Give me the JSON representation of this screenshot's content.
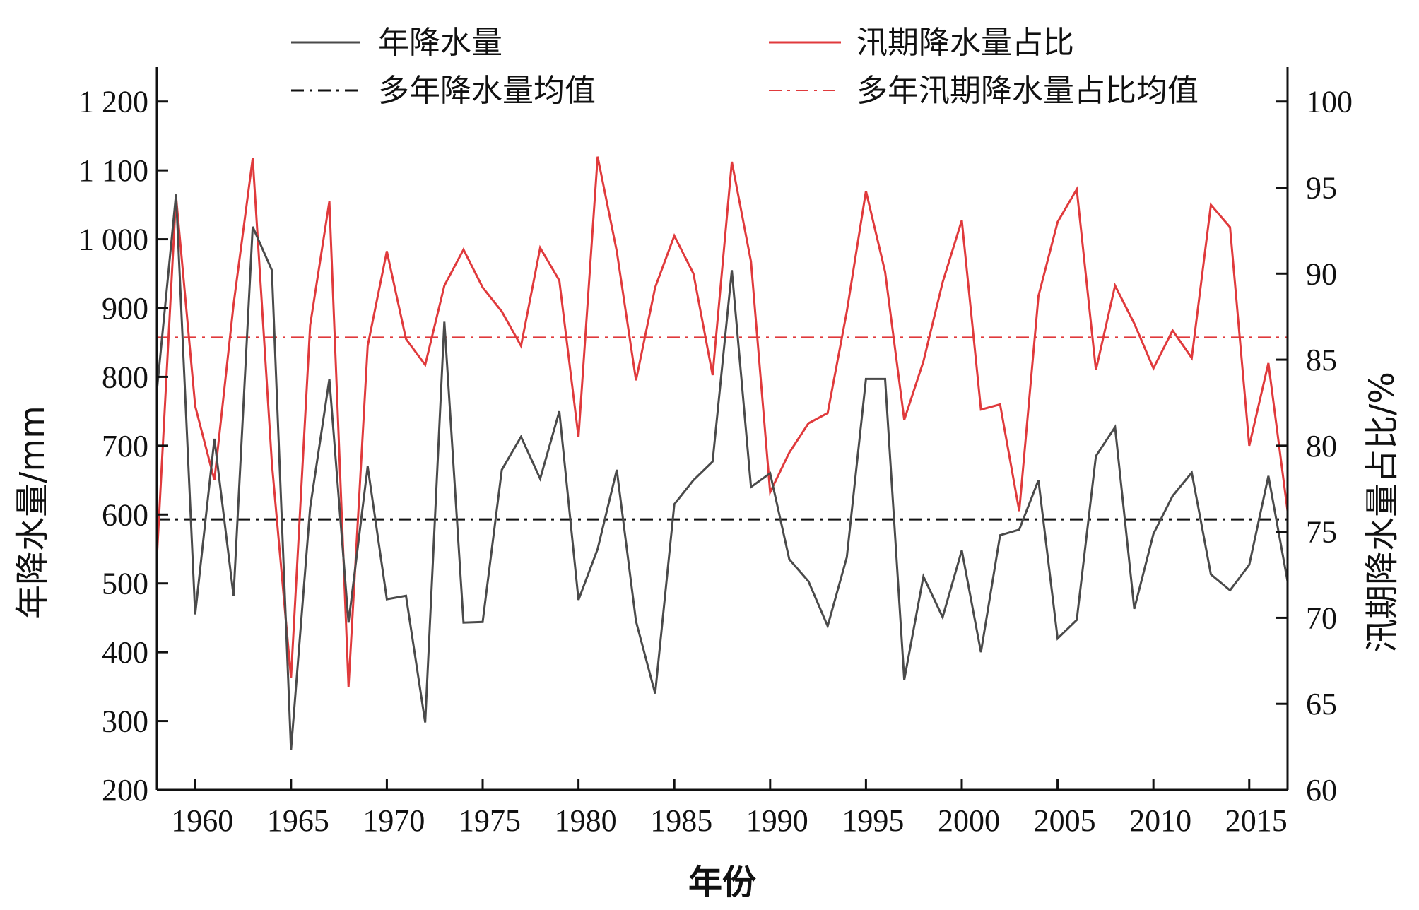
{
  "chart_data": {
    "type": "line",
    "xlabel": "年份",
    "ylabel_left": "年降水量/mm",
    "ylabel_right": "汛期降水量占比/%",
    "xlim": [
      1958,
      2017
    ],
    "ylim_left": [
      200,
      1250
    ],
    "ylim_right": [
      60,
      102
    ],
    "x_ticks": [
      1960,
      1965,
      1970,
      1975,
      1980,
      1985,
      1990,
      1995,
      2000,
      2005,
      2010,
      2015
    ],
    "y_left_ticks": [
      200,
      300,
      400,
      500,
      600,
      700,
      800,
      900,
      1000,
      1100,
      1200
    ],
    "y_left_tick_labels": [
      "200",
      "300",
      "400",
      "500",
      "600",
      "700",
      "800",
      "900",
      "1 000",
      "1 100",
      "1 200"
    ],
    "y_right_ticks": [
      60,
      65,
      70,
      75,
      80,
      85,
      90,
      95,
      100
    ],
    "y_right_tick_labels": [
      "60",
      "65",
      "70",
      "75",
      "80",
      "85",
      "90",
      "95",
      "100"
    ],
    "years": [
      1958,
      1959,
      1960,
      1961,
      1962,
      1963,
      1964,
      1965,
      1966,
      1967,
      1968,
      1969,
      1970,
      1971,
      1972,
      1973,
      1974,
      1975,
      1976,
      1977,
      1978,
      1979,
      1980,
      1981,
      1982,
      1983,
      1984,
      1985,
      1986,
      1987,
      1988,
      1989,
      1990,
      1991,
      1992,
      1993,
      1994,
      1995,
      1996,
      1997,
      1998,
      1999,
      2000,
      2001,
      2002,
      2003,
      2004,
      2005,
      2006,
      2007,
      2008,
      2009,
      2010,
      2011,
      2012,
      2013,
      2014,
      2015,
      2016,
      2017
    ],
    "series": [
      {
        "name": "年降水量",
        "axis": "left",
        "color": "#4a4a4a",
        "values": [
          780,
          1065,
          455,
          710,
          482,
          1018,
          955,
          258,
          610,
          797,
          443,
          670,
          477,
          482,
          298,
          880,
          443,
          444,
          665,
          713,
          652,
          750,
          476,
          550,
          665,
          445,
          340,
          615,
          650,
          677,
          955,
          640,
          660,
          535,
          503,
          438,
          538,
          797,
          797,
          360,
          510,
          451,
          548,
          400,
          570,
          578,
          650,
          420,
          447,
          685,
          727,
          463,
          572,
          627,
          661,
          513,
          490,
          527,
          656,
          503
        ]
      },
      {
        "name": "汛期降水量占比",
        "axis": "right",
        "color": "#e03a3c",
        "values": [
          73.5,
          94.5,
          82.3,
          78,
          88.2,
          96.7,
          79,
          66.5,
          87,
          94.2,
          66,
          85.8,
          91.3,
          86.2,
          84.7,
          89.3,
          91.4,
          89.2,
          87.8,
          85.8,
          91.5,
          89.6,
          80.5,
          96.8,
          91.3,
          83.8,
          89.2,
          92.2,
          90,
          84.1,
          96.5,
          90.7,
          77.3,
          79.6,
          81.3,
          81.9,
          87.8,
          94.8,
          90.1,
          81.5,
          84.9,
          89.5,
          93.1,
          82.1,
          82.4,
          76.2,
          88.7,
          93,
          94.9,
          84.4,
          89.3,
          87.1,
          84.5,
          86.7,
          85.1,
          94,
          92.7,
          80,
          84.8,
          76.2
        ]
      }
    ],
    "reference_lines": [
      {
        "name": "多年降水量均值",
        "axis": "left",
        "value": 593,
        "color": "#111111",
        "style": "dash-dot"
      },
      {
        "name": "多年汛期降水量占比均值",
        "axis": "right",
        "value": 86.3,
        "color": "#e03a3c",
        "style": "dash-dot"
      }
    ],
    "legend": {
      "placement": "top",
      "entries": [
        "年降水量",
        "汛期降水量占比",
        "多年降水量均值",
        "多年汛期降水量占比均值"
      ]
    }
  }
}
